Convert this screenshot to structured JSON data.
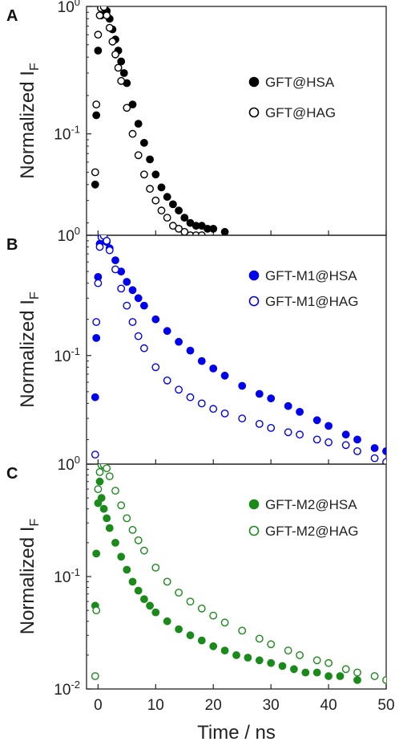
{
  "chart_data": [
    {
      "type": "scatter",
      "panel_label": "A",
      "ylabel": "Normalized I",
      "ylabel_sub": "F",
      "xlabel": "",
      "y_scale": "log",
      "xlim": [
        -2,
        50
      ],
      "ylim": [
        0.016,
        1.0
      ],
      "yticks": [
        {
          "value": 1,
          "base": "10",
          "exp": "0"
        },
        {
          "value": 0.1,
          "base": "10",
          "exp": "-1"
        }
      ],
      "xticks": [],
      "legend_position": "center-right",
      "grid": false,
      "series": [
        {
          "name": "GFT@HSA",
          "marker": "filled-circle",
          "color": "#000000",
          "x": [
            -0.5,
            -0.3,
            0,
            0.5,
            1,
            1.5,
            2,
            2.5,
            3,
            3.5,
            4,
            4.5,
            5,
            6,
            7,
            8,
            9,
            10,
            11,
            12,
            13,
            14,
            15,
            16,
            17,
            18,
            19,
            20,
            22
          ],
          "y": [
            0.04,
            0.14,
            0.45,
            0.85,
            0.98,
            0.92,
            0.8,
            0.66,
            0.55,
            0.45,
            0.37,
            0.3,
            0.25,
            0.17,
            0.12,
            0.085,
            0.063,
            0.048,
            0.038,
            0.032,
            0.028,
            0.025,
            0.022,
            0.02,
            0.019,
            0.019,
            0.018,
            0.018,
            0.017
          ]
        },
        {
          "name": "GFT@HAG",
          "marker": "open-circle",
          "color": "#000000",
          "x": [
            -0.5,
            -0.3,
            0,
            0.3,
            0.5,
            1,
            1.5,
            2,
            2.5,
            3,
            3.5,
            4,
            5,
            6,
            7,
            8,
            9,
            10,
            11,
            12,
            13,
            14,
            15,
            16,
            17,
            18
          ],
          "y": [
            0.05,
            0.17,
            0.6,
            0.85,
            0.97,
            0.99,
            0.85,
            0.68,
            0.53,
            0.42,
            0.33,
            0.26,
            0.16,
            0.1,
            0.068,
            0.048,
            0.037,
            0.03,
            0.025,
            0.022,
            0.019,
            0.018,
            0.017,
            0.016,
            0.016,
            0.016
          ]
        }
      ]
    },
    {
      "type": "scatter",
      "panel_label": "B",
      "ylabel": "Normalized I",
      "ylabel_sub": "F",
      "xlabel": "",
      "y_scale": "log",
      "xlim": [
        -2,
        50
      ],
      "ylim": [
        0.0125,
        1.0
      ],
      "yticks": [
        {
          "value": 1,
          "base": "10",
          "exp": "0"
        },
        {
          "value": 0.1,
          "base": "10",
          "exp": "-1"
        }
      ],
      "xticks": [],
      "legend_position": "top-right",
      "grid": false,
      "series": [
        {
          "name": "GFT-M1@HSA",
          "marker": "filled-circle",
          "color": "#0000ee",
          "x": [
            -0.5,
            -0.3,
            0,
            0.3,
            0.6,
            1,
            1.5,
            2,
            3,
            4,
            5,
            6,
            7,
            8,
            10,
            12,
            14,
            16,
            18,
            20,
            22,
            25,
            28,
            30,
            33,
            35,
            38,
            40,
            43,
            45,
            48,
            50
          ],
          "y": [
            0.045,
            0.14,
            0.45,
            0.85,
            0.98,
            0.97,
            0.88,
            0.78,
            0.62,
            0.5,
            0.41,
            0.35,
            0.3,
            0.26,
            0.2,
            0.16,
            0.13,
            0.11,
            0.09,
            0.078,
            0.068,
            0.056,
            0.048,
            0.044,
            0.038,
            0.034,
            0.029,
            0.026,
            0.022,
            0.02,
            0.017,
            0.016
          ]
        },
        {
          "name": "GFT-M1@HAG",
          "marker": "open-circle",
          "color": "#0000ee",
          "x": [
            -0.5,
            -0.3,
            0,
            0.3,
            0.6,
            1,
            1.5,
            2,
            3,
            4,
            5,
            6,
            7,
            8,
            10,
            12,
            14,
            16,
            18,
            20,
            22,
            25,
            28,
            30,
            33,
            35,
            38,
            40,
            43,
            45,
            48,
            50
          ],
          "y": [
            0.015,
            0.19,
            0.4,
            0.8,
            0.96,
            0.99,
            0.9,
            0.75,
            0.52,
            0.36,
            0.26,
            0.19,
            0.145,
            0.115,
            0.08,
            0.062,
            0.052,
            0.045,
            0.04,
            0.036,
            0.033,
            0.03,
            0.027,
            0.025,
            0.023,
            0.022,
            0.02,
            0.019,
            0.018,
            0.016,
            0.014,
            0.013
          ]
        }
      ]
    },
    {
      "type": "scatter",
      "panel_label": "C",
      "ylabel": "Normalized I",
      "ylabel_sub": "F",
      "xlabel": "Time / ns",
      "y_scale": "log",
      "xlim": [
        -2,
        50
      ],
      "ylim": [
        0.01,
        1.0
      ],
      "yticks": [
        {
          "value": 1,
          "base": "10",
          "exp": "0"
        },
        {
          "value": 0.1,
          "base": "10",
          "exp": "-1"
        },
        {
          "value": 0.01,
          "base": "10",
          "exp": "-2"
        }
      ],
      "xticks": [
        0,
        10,
        20,
        30,
        40,
        50
      ],
      "legend_position": "center-right",
      "grid": false,
      "series": [
        {
          "name": "GFT-M2@HSA",
          "marker": "filled-circle",
          "color": "#1a8a1a",
          "x": [
            -0.5,
            -0.3,
            0,
            0.3,
            0.6,
            1,
            1.5,
            2,
            3,
            4,
            5,
            6,
            7,
            8,
            9,
            10,
            12,
            14,
            16,
            18,
            20,
            22,
            24,
            26,
            28,
            30,
            32,
            34,
            36,
            38,
            40,
            42,
            45
          ],
          "y": [
            0.055,
            0.16,
            0.45,
            0.7,
            0.5,
            0.4,
            0.33,
            0.27,
            0.2,
            0.15,
            0.115,
            0.09,
            0.075,
            0.063,
            0.055,
            0.048,
            0.04,
            0.034,
            0.03,
            0.027,
            0.024,
            0.022,
            0.02,
            0.019,
            0.018,
            0.017,
            0.016,
            0.015,
            0.014,
            0.014,
            0.013,
            0.013,
            0.012
          ]
        },
        {
          "name": "GFT-M2@HAG",
          "marker": "open-circle",
          "color": "#1a8a1a",
          "x": [
            -0.5,
            -0.3,
            0,
            0.3,
            0.6,
            1,
            1.5,
            2,
            3,
            4,
            5,
            6,
            7,
            8,
            10,
            12,
            14,
            16,
            18,
            20,
            22,
            25,
            28,
            30,
            33,
            35,
            38,
            40,
            43,
            45,
            48,
            50
          ],
          "y": [
            0.013,
            0.05,
            0.6,
            0.85,
            0.98,
            0.99,
            0.92,
            0.78,
            0.58,
            0.43,
            0.33,
            0.26,
            0.21,
            0.17,
            0.12,
            0.09,
            0.072,
            0.06,
            0.052,
            0.045,
            0.039,
            0.033,
            0.028,
            0.025,
            0.022,
            0.02,
            0.018,
            0.017,
            0.015,
            0.014,
            0.013,
            0.012
          ]
        }
      ]
    }
  ]
}
